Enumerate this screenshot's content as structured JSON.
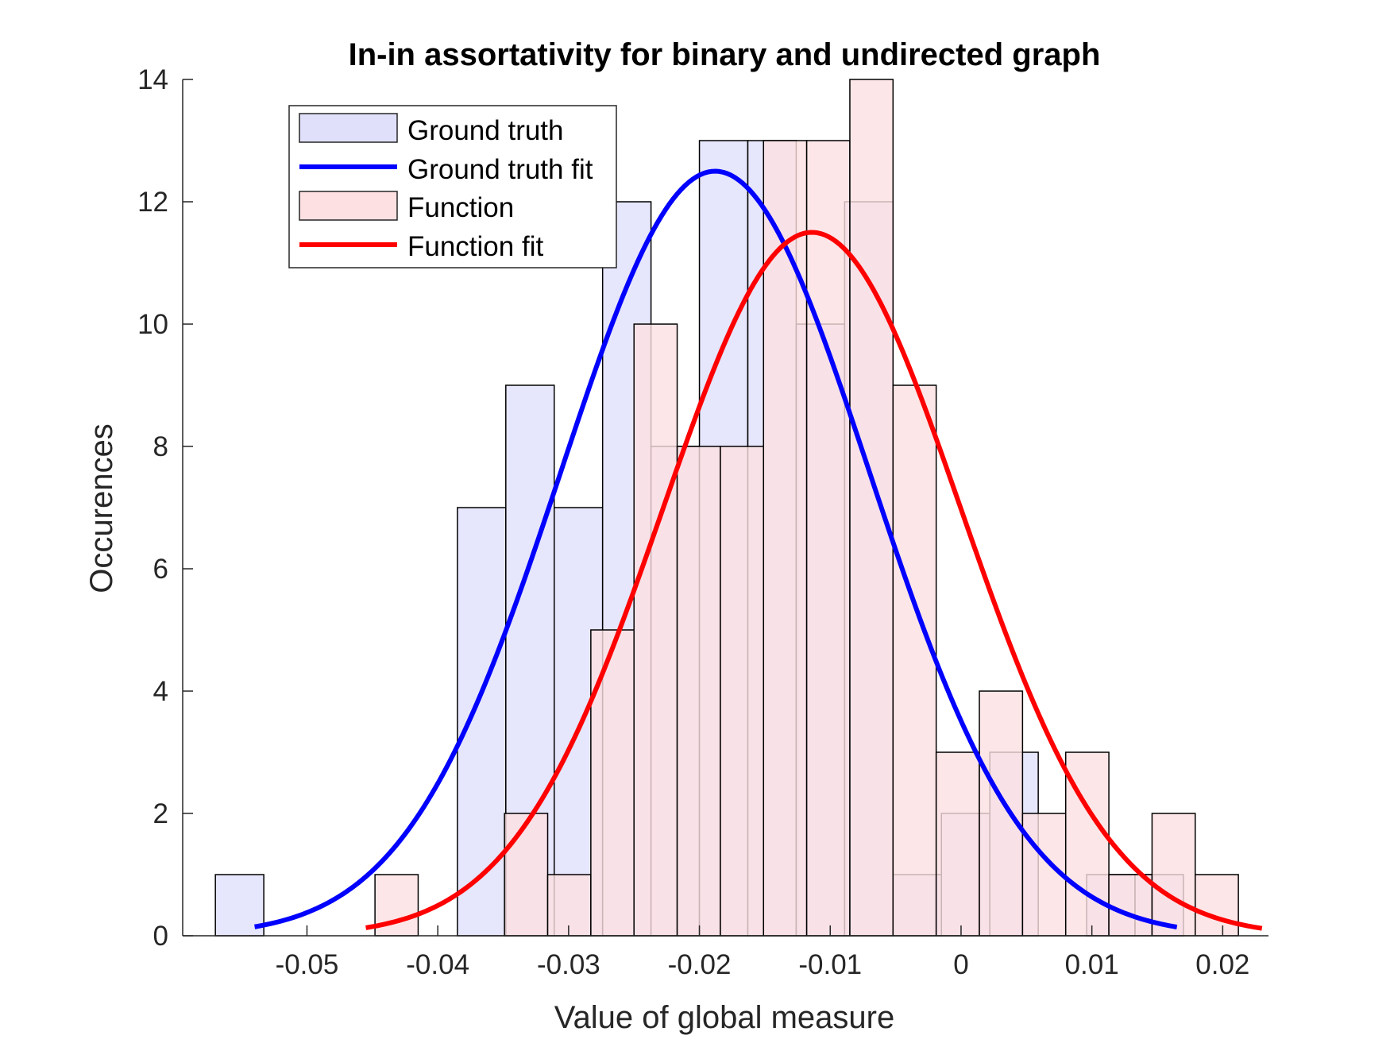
{
  "chart_data": {
    "type": "bar",
    "title": "In-in assortativity for binary and undirected graph",
    "xlabel": "Value of global measure",
    "ylabel": "Occurences",
    "xlim": [
      -0.0595,
      0.0235
    ],
    "ylim": [
      0,
      14
    ],
    "xticks": [
      -0.05,
      -0.04,
      -0.03,
      -0.02,
      -0.01,
      0,
      0.01,
      0.02
    ],
    "xtick_labels": [
      "-0.05",
      "-0.04",
      "-0.03",
      "-0.02",
      "-0.01",
      "0",
      "0.01",
      "0.02"
    ],
    "yticks": [
      0,
      2,
      4,
      6,
      8,
      10,
      12,
      14
    ],
    "ytick_labels": [
      "0",
      "2",
      "4",
      "6",
      "8",
      "10",
      "12",
      "14"
    ],
    "legend_position": "top-left",
    "series": [
      {
        "name": "Ground truth",
        "kind": "histogram",
        "color": "#e0e0fb",
        "bin_edges": [
          -0.057,
          -0.0533,
          -0.0496,
          -0.0459,
          -0.0422,
          -0.0385,
          -0.0348,
          -0.0311,
          -0.0274,
          -0.0237,
          -0.02,
          -0.0163,
          -0.0126,
          -0.0089,
          -0.0052,
          -0.0015,
          0.0022,
          0.0059,
          0.0096,
          0.0133,
          0.017
        ],
        "counts": [
          1,
          0,
          0,
          0,
          0,
          7,
          9,
          7,
          12,
          8,
          13,
          13,
          10,
          12,
          1,
          2,
          3,
          0,
          1,
          1
        ]
      },
      {
        "name": "Function",
        "kind": "histogram",
        "color": "#fde0e1",
        "bin_edges": [
          -0.0448,
          -0.0415,
          -0.0382,
          -0.0349,
          -0.0316,
          -0.0283,
          -0.025,
          -0.0217,
          -0.0184,
          -0.0151,
          -0.0118,
          -0.0085,
          -0.0052,
          -0.0019,
          0.0014,
          0.0047,
          0.008,
          0.0113,
          0.0146,
          0.0179,
          0.0212
        ],
        "counts": [
          1,
          0,
          0,
          2,
          1,
          5,
          10,
          8,
          8,
          13,
          13,
          14,
          9,
          3,
          4,
          2,
          3,
          1,
          2,
          1
        ]
      },
      {
        "name": "Ground truth fit",
        "kind": "normal_fit",
        "color": "#0000ff",
        "mean": -0.0188,
        "sigma": 0.0118,
        "peak": 12.5,
        "x_range": [
          -0.054,
          0.0165
        ]
      },
      {
        "name": "Function fit",
        "kind": "normal_fit",
        "color": "#ff0000",
        "mean": -0.0114,
        "sigma": 0.0114,
        "peak": 11.5,
        "x_range": [
          -0.0455,
          0.023
        ]
      }
    ]
  }
}
